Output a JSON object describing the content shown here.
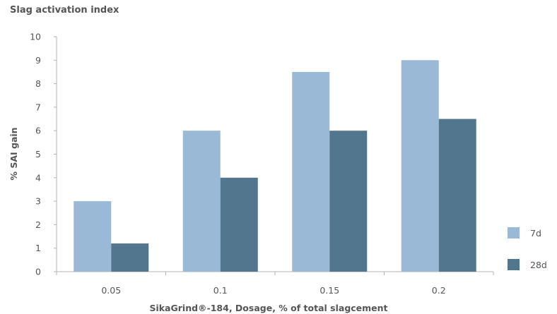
{
  "chart_data": {
    "type": "bar",
    "title": "Slag activation index",
    "xlabel": "SikaGrind®-184, Dosage, % of total slagcement",
    "ylabel": "% SAI gain",
    "categories": [
      "0.05",
      "0.1",
      "0.15",
      "0.2"
    ],
    "yticks": [
      "0",
      "1",
      "2",
      "3",
      "4",
      "5",
      "6",
      "7",
      "8",
      "9",
      "10"
    ],
    "ylim": [
      0,
      10
    ],
    "grid": false,
    "legend_position": "bottom-right",
    "series": [
      {
        "name": "7d",
        "values": [
          3,
          6,
          8.5,
          9
        ],
        "color": "#9ab9d7"
      },
      {
        "name": "28d",
        "values": [
          1.2,
          4,
          6,
          6.5
        ],
        "color": "#52768e"
      }
    ]
  }
}
